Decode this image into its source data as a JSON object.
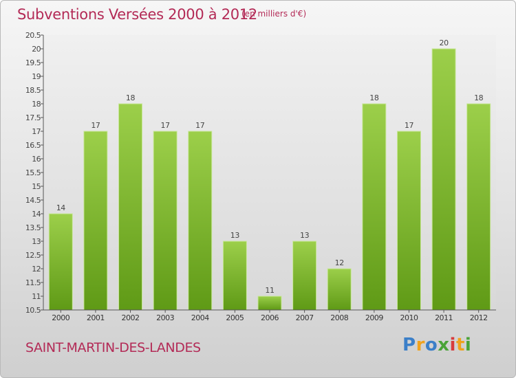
{
  "title": "Subventions Versées 2000 à 2012",
  "subtitle": "(en milliers d'€)",
  "place_name": "SAINT-MARTIN-DES-LANDES",
  "logo": {
    "text": "Proxiti",
    "letters": [
      "P",
      "r",
      "o",
      "x",
      "i",
      "t",
      "i"
    ]
  },
  "colors": {
    "title": "#b32a56",
    "bar_light": "#9ccf4a",
    "bar_dark": "#5f9a16"
  },
  "chart_data": {
    "type": "bar",
    "title": "Subventions Versées 2000 à 2012",
    "subtitle": "(en milliers d'€)",
    "categories": [
      "2000",
      "2001",
      "2002",
      "2003",
      "2004",
      "2005",
      "2006",
      "2007",
      "2008",
      "2009",
      "2010",
      "2011",
      "2012"
    ],
    "values": [
      14,
      17,
      18,
      17,
      17,
      13,
      11,
      13,
      12,
      18,
      17,
      20,
      18
    ],
    "value_labels": [
      "14",
      "17",
      "18",
      "17",
      "17",
      "13",
      "11",
      "13",
      "12",
      "18",
      "17",
      "20",
      "18"
    ],
    "ylim": [
      10.5,
      20.5
    ],
    "yticks": [
      "10.5",
      "11",
      "11.5",
      "12",
      "12.5",
      "13",
      "13.5",
      "14",
      "14.5",
      "15",
      "15.5",
      "16",
      "16.5",
      "17",
      "17.5",
      "18",
      "18.5",
      "19",
      "19.5",
      "20",
      "20.5"
    ],
    "grid": false,
    "legend": "none"
  }
}
